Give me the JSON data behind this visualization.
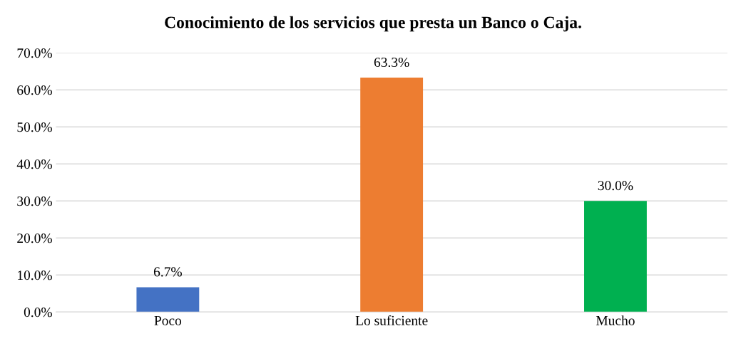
{
  "chart_data": {
    "type": "bar",
    "title": "Conocimiento de los servicios que presta un Banco o Caja.",
    "categories": [
      "Poco",
      "Lo suficiente",
      "Mucho"
    ],
    "values": [
      6.7,
      63.3,
      30.0
    ],
    "colors": [
      "#4472c4",
      "#ed7d31",
      "#00b050"
    ],
    "value_labels": [
      "6.7%",
      "63.3%",
      "30.0%"
    ],
    "ylim": [
      0,
      70
    ],
    "yticks": [
      {
        "value": 0,
        "label": "0.0%"
      },
      {
        "value": 10,
        "label": "10.0%"
      },
      {
        "value": 20,
        "label": "20.0%"
      },
      {
        "value": 30,
        "label": "30.0%"
      },
      {
        "value": 40,
        "label": "40.0%"
      },
      {
        "value": 50,
        "label": "50.0%"
      },
      {
        "value": 60,
        "label": "60.0%"
      },
      {
        "value": 70,
        "label": "70.0%"
      }
    ],
    "grid": "y",
    "legend": false
  }
}
